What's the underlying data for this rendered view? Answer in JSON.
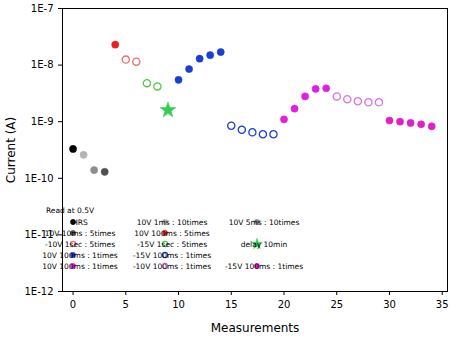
{
  "chart_data": {
    "type": "scatter",
    "x_label": "Measurements",
    "y_label": "Current (A)",
    "annotations": [
      "Read at 0.5V"
    ],
    "log": "y",
    "legend": "bottom-left",
    "xlim": [
      -1,
      35.5
    ],
    "xticks": [
      0,
      5,
      10,
      15,
      20,
      25,
      30,
      35
    ],
    "ylim": [
      1e-12,
      1e-07
    ],
    "yticks": [
      {
        "value": 1e-12,
        "label": "1E-12"
      },
      {
        "value": 1e-11,
        "label": "1E-11"
      },
      {
        "value": 1e-10,
        "label": "1E-10"
      },
      {
        "value": 1e-09,
        "label": "1E-9"
      },
      {
        "value": 1e-08,
        "label": "1E-8"
      },
      {
        "value": 1e-07,
        "label": "1E-7"
      }
    ],
    "series": [
      {
        "name": "HRS",
        "color": "#000000",
        "marker": "circle",
        "x": [
          0
        ],
        "values": [
          3.3e-10
        ]
      },
      {
        "name": "10V 1ms : 10times",
        "color": "#b4b4b4",
        "marker": "circle",
        "x": [
          1
        ],
        "values": [
          2.6e-10
        ]
      },
      {
        "name": "10V 5ms : 10times",
        "color": "#8c8c8c",
        "marker": "circle",
        "x": [
          2
        ],
        "values": [
          1.4e-10
        ]
      },
      {
        "name": "10V 10ms : 5times",
        "color": "#505050",
        "marker": "circle",
        "x": [
          3
        ],
        "values": [
          1.3e-10
        ]
      },
      {
        "name": "10V 100ms : 5times",
        "color": "#e8231c",
        "marker": "circle",
        "x": [
          4
        ],
        "values": [
          2.3e-08
        ]
      },
      {
        "name": "-10V 1sec : 5times",
        "color": "#e87070",
        "marker": "open_circle",
        "x": [
          5,
          6
        ],
        "values": [
          1.25e-08,
          1.15e-08
        ]
      },
      {
        "name": "-15V 1sec : 5times",
        "color": "#4cc84c",
        "marker": "open_circle",
        "x": [
          7,
          8
        ],
        "values": [
          4.8e-09,
          4.2e-09
        ]
      },
      {
        "name": "delay 10min",
        "color": "#33cc55",
        "marker": "star",
        "x": [
          9
        ],
        "values": [
          1.6e-09
        ]
      },
      {
        "name": "10V 100ms : 1times",
        "color": "#1a3fcf",
        "marker": "circle",
        "x": [
          10,
          11,
          12,
          13,
          14
        ],
        "values": [
          5.5e-09,
          8.5e-09,
          1.3e-08,
          1.5e-08,
          1.7e-08
        ]
      },
      {
        "name": "-15V 100ms : 1times",
        "color": "#1a3fcf",
        "marker": "open_circle",
        "x": [
          15,
          16,
          17,
          18,
          19
        ],
        "values": [
          8.5e-10,
          7.2e-10,
          6.5e-10,
          6e-10,
          6e-10
        ]
      },
      {
        "name": "10V 100ms : 1times",
        "color": "#e020e0",
        "marker": "circle",
        "x": [
          20,
          21,
          22,
          23,
          24
        ],
        "values": [
          1.1e-09,
          1.7e-09,
          2.8e-09,
          3.8e-09,
          3.9e-09
        ]
      },
      {
        "name": "-10V 100ms : 1times",
        "color": "#e070e0",
        "marker": "open_circle",
        "x": [
          25,
          26,
          27,
          28,
          29
        ],
        "values": [
          2.8e-09,
          2.5e-09,
          2.3e-09,
          2.2e-09,
          2.2e-09
        ]
      },
      {
        "name": "-15V 100ms : 1times",
        "color": "#e020c0",
        "marker": "circle",
        "x": [
          30,
          31,
          32,
          33,
          34
        ],
        "values": [
          1.05e-09,
          1e-09,
          9.5e-10,
          9e-10,
          8.3e-10
        ]
      }
    ]
  }
}
